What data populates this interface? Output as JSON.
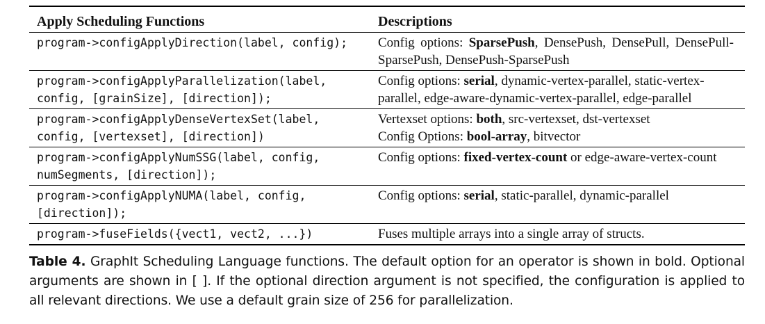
{
  "table": {
    "headers": {
      "col1": "Apply Scheduling Functions",
      "col2": "Descriptions"
    },
    "rows": [
      {
        "code": [
          "program->configApplyDirection(label, config);"
        ],
        "desc": [
          {
            "text": "Config options: ",
            "bold": false
          },
          {
            "text": "SparsePush",
            "bold": true
          },
          {
            "text": ", DensePush, DensePull, DensePull-SparsePush, DensePush-SparsePush",
            "bold": false
          }
        ]
      },
      {
        "code": [
          "program->configApplyParallelization(label,",
          "config, [grainSize], [direction]);"
        ],
        "desc": [
          {
            "text": "Config options: ",
            "bold": false
          },
          {
            "text": "serial",
            "bold": true
          },
          {
            "text": ", dynamic-vertex-parallel, static-vertex-parallel, edge-aware-dynamic-vertex-parallel, edge-parallel",
            "bold": false
          }
        ]
      },
      {
        "code": [
          "program->configApplyDenseVertexSet(label,",
          "config, [vertexset], [direction])"
        ],
        "desc_lines": [
          [
            {
              "text": "Vertexset options: ",
              "bold": false
            },
            {
              "text": "both",
              "bold": true
            },
            {
              "text": ", src-vertexset, dst-vertexset",
              "bold": false
            }
          ],
          [
            {
              "text": "Config Options: ",
              "bold": false
            },
            {
              "text": "bool-array",
              "bold": true
            },
            {
              "text": ", bitvector",
              "bold": false
            }
          ]
        ]
      },
      {
        "code": [
          "program->configApplyNumSSG(label, config,",
          "numSegments, [direction]);"
        ],
        "desc": [
          {
            "text": "Config options: ",
            "bold": false
          },
          {
            "text": "fixed-vertex-count",
            "bold": true
          },
          {
            "text": " or edge-aware-vertex-count",
            "bold": false
          }
        ]
      },
      {
        "code": [
          "program->configApplyNUMA(label, config,",
          "[direction]);"
        ],
        "desc": [
          {
            "text": "Config options: ",
            "bold": false
          },
          {
            "text": "serial",
            "bold": true
          },
          {
            "text": ", static-parallel, dynamic-parallel",
            "bold": false
          }
        ]
      },
      {
        "code": [
          "program->fuseFields({vect1, vect2, ...})"
        ],
        "desc": [
          {
            "text": "Fuses multiple arrays into a single array of structs.",
            "bold": false
          }
        ]
      }
    ]
  },
  "caption": {
    "label": "Table 4.",
    "text": " GraphIt Scheduling Language functions. The default option for an operator is shown in bold. Optional arguments are shown in [ ]. If the optional direction argument is not specified, the configuration is applied to all relevant directions. We use a default grain size of 256 for parallelization."
  }
}
